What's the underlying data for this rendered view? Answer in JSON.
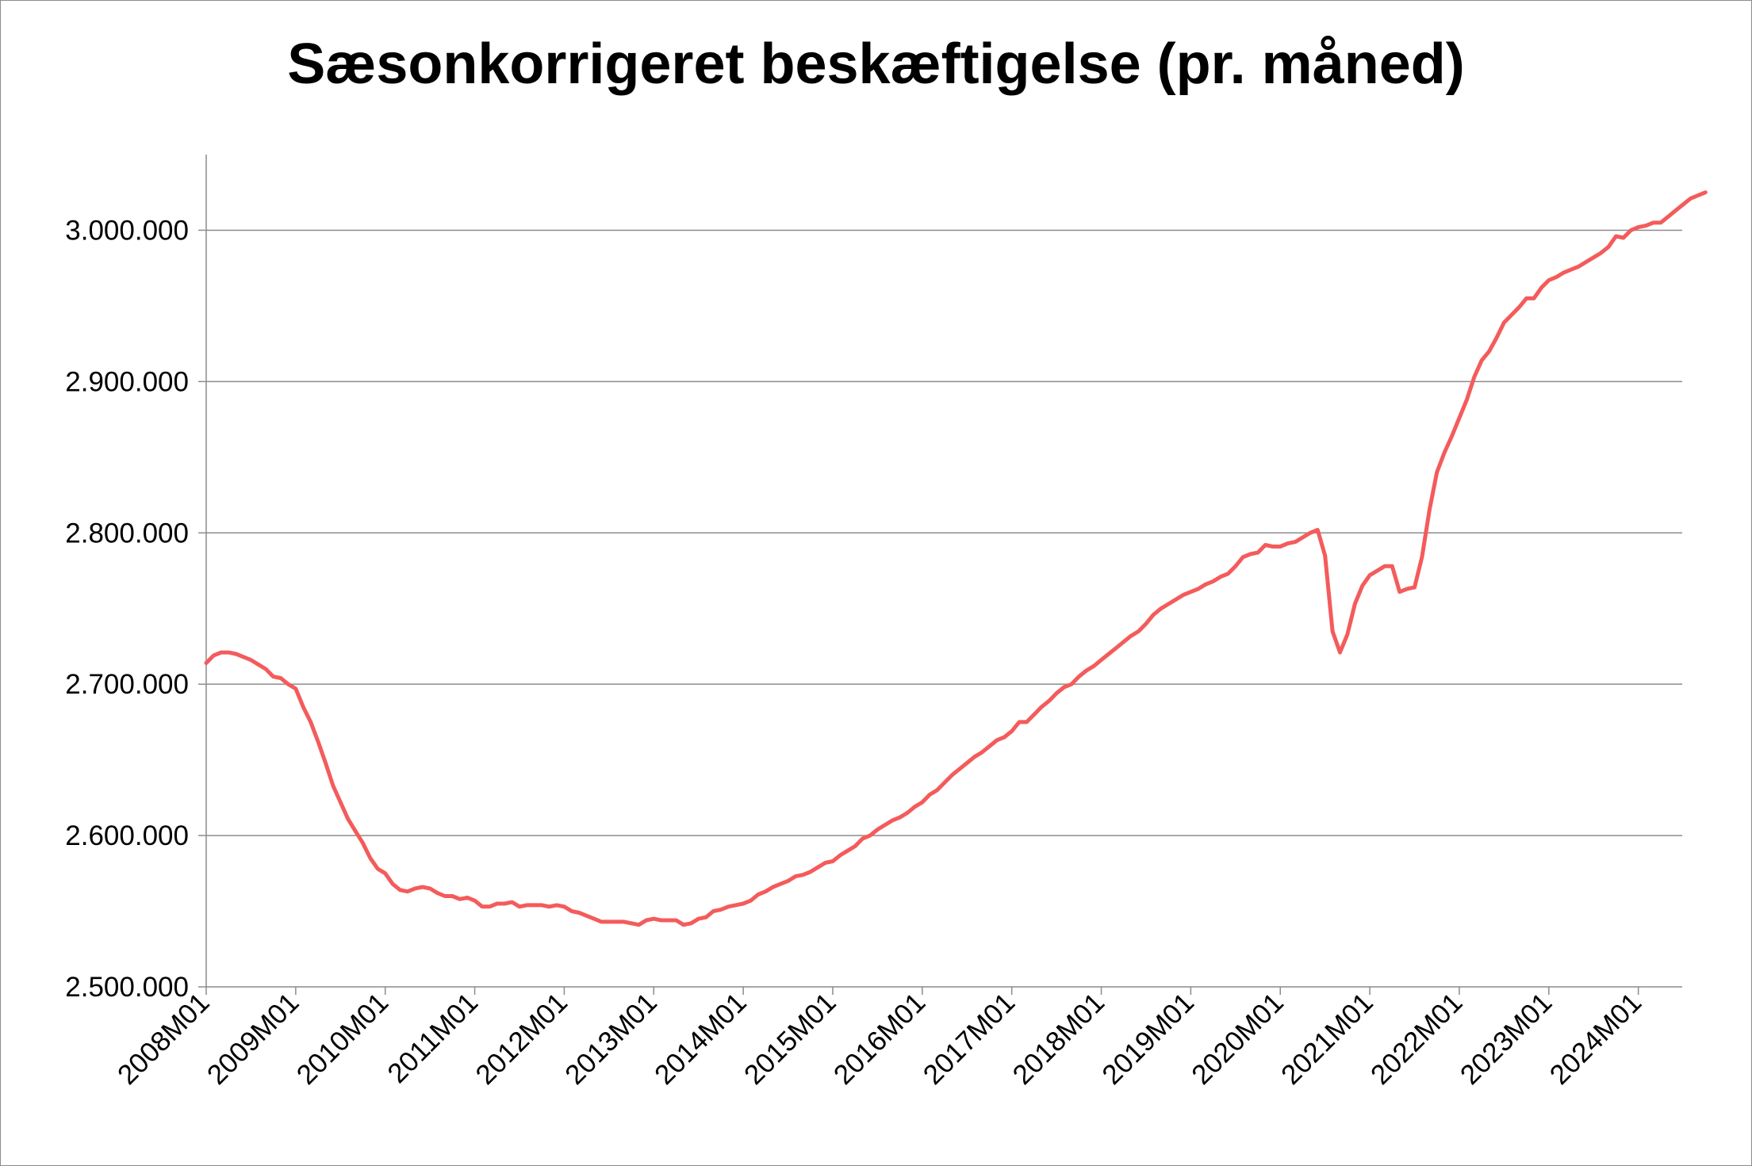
{
  "chart_data": {
    "type": "line",
    "title": "Sæsonkorrigeret beskæftigelse (pr. måned)",
    "xlabel": "",
    "ylabel": "",
    "ylim": [
      2500000,
      3050000
    ],
    "grid": "horizontal",
    "legend": "none",
    "line_color": "#f45b5b",
    "y_ticks": [
      {
        "value": 2500000,
        "label": "2.500.000"
      },
      {
        "value": 2600000,
        "label": "2.600.000"
      },
      {
        "value": 2700000,
        "label": "2.700.000"
      },
      {
        "value": 2800000,
        "label": "2.800.000"
      },
      {
        "value": 2900000,
        "label": "2.900.000"
      },
      {
        "value": 3000000,
        "label": "3.000.000"
      }
    ],
    "x_ticks": [
      "2008M01",
      "2009M01",
      "2010M01",
      "2011M01",
      "2012M01",
      "2013M01",
      "2014M01",
      "2015M01",
      "2016M01",
      "2017M01",
      "2018M01",
      "2019M01",
      "2020M01",
      "2021M01",
      "2022M01",
      "2023M01",
      "2024M01"
    ],
    "series": [
      {
        "x_start": "2008M01",
        "frequency": "monthly",
        "values": [
          2714000,
          2719000,
          2721000,
          2721000,
          2720000,
          2718000,
          2716000,
          2713000,
          2710000,
          2705000,
          2704000,
          2700000,
          2697000,
          2685000,
          2675000,
          2662000,
          2648000,
          2633000,
          2622000,
          2611000,
          2603000,
          2595000,
          2585000,
          2578000,
          2575000,
          2568000,
          2564000,
          2563000,
          2565000,
          2566000,
          2565000,
          2562000,
          2560000,
          2560000,
          2558000,
          2559000,
          2557000,
          2553000,
          2553000,
          2555000,
          2555000,
          2556000,
          2553000,
          2554000,
          2554000,
          2554000,
          2553000,
          2554000,
          2553000,
          2550000,
          2549000,
          2547000,
          2545000,
          2543000,
          2543000,
          2543000,
          2543000,
          2542000,
          2541000,
          2544000,
          2545000,
          2544000,
          2544000,
          2544000,
          2541000,
          2542000,
          2545000,
          2546000,
          2550000,
          2551000,
          2553000,
          2554000,
          2555000,
          2557000,
          2561000,
          2563000,
          2566000,
          2568000,
          2570000,
          2573000,
          2574000,
          2576000,
          2579000,
          2582000,
          2583000,
          2587000,
          2590000,
          2593000,
          2598000,
          2600000,
          2604000,
          2607000,
          2610000,
          2612000,
          2615000,
          2619000,
          2622000,
          2627000,
          2630000,
          2635000,
          2640000,
          2644000,
          2648000,
          2652000,
          2655000,
          2659000,
          2663000,
          2665000,
          2669000,
          2675000,
          2675000,
          2680000,
          2685000,
          2689000,
          2694000,
          2698000,
          2700000,
          2705000,
          2709000,
          2712000,
          2716000,
          2720000,
          2724000,
          2728000,
          2732000,
          2735000,
          2740000,
          2746000,
          2750000,
          2753000,
          2756000,
          2759000,
          2761000,
          2763000,
          2766000,
          2768000,
          2771000,
          2773000,
          2778000,
          2784000,
          2786000,
          2787000,
          2792000,
          2791000,
          2791000,
          2793000,
          2794000,
          2797000,
          2800000,
          2802000,
          2785000,
          2735000,
          2721000,
          2733000,
          2753000,
          2765000,
          2772000,
          2775000,
          2778000,
          2778000,
          2761000,
          2763000,
          2764000,
          2784000,
          2815000,
          2840000,
          2853000,
          2864000,
          2876000,
          2888000,
          2903000,
          2914000,
          2920000,
          2929000,
          2939000,
          2944000,
          2949000,
          2955000,
          2955000,
          2962000,
          2967000,
          2969000,
          2972000,
          2974000,
          2976000,
          2979000,
          2982000,
          2985000,
          2989000,
          2996000,
          2995000,
          3000000,
          3002000,
          3003000,
          3005000,
          3005000,
          3009000,
          3013000,
          3017000,
          3021000,
          3023000,
          3025000
        ]
      }
    ]
  }
}
